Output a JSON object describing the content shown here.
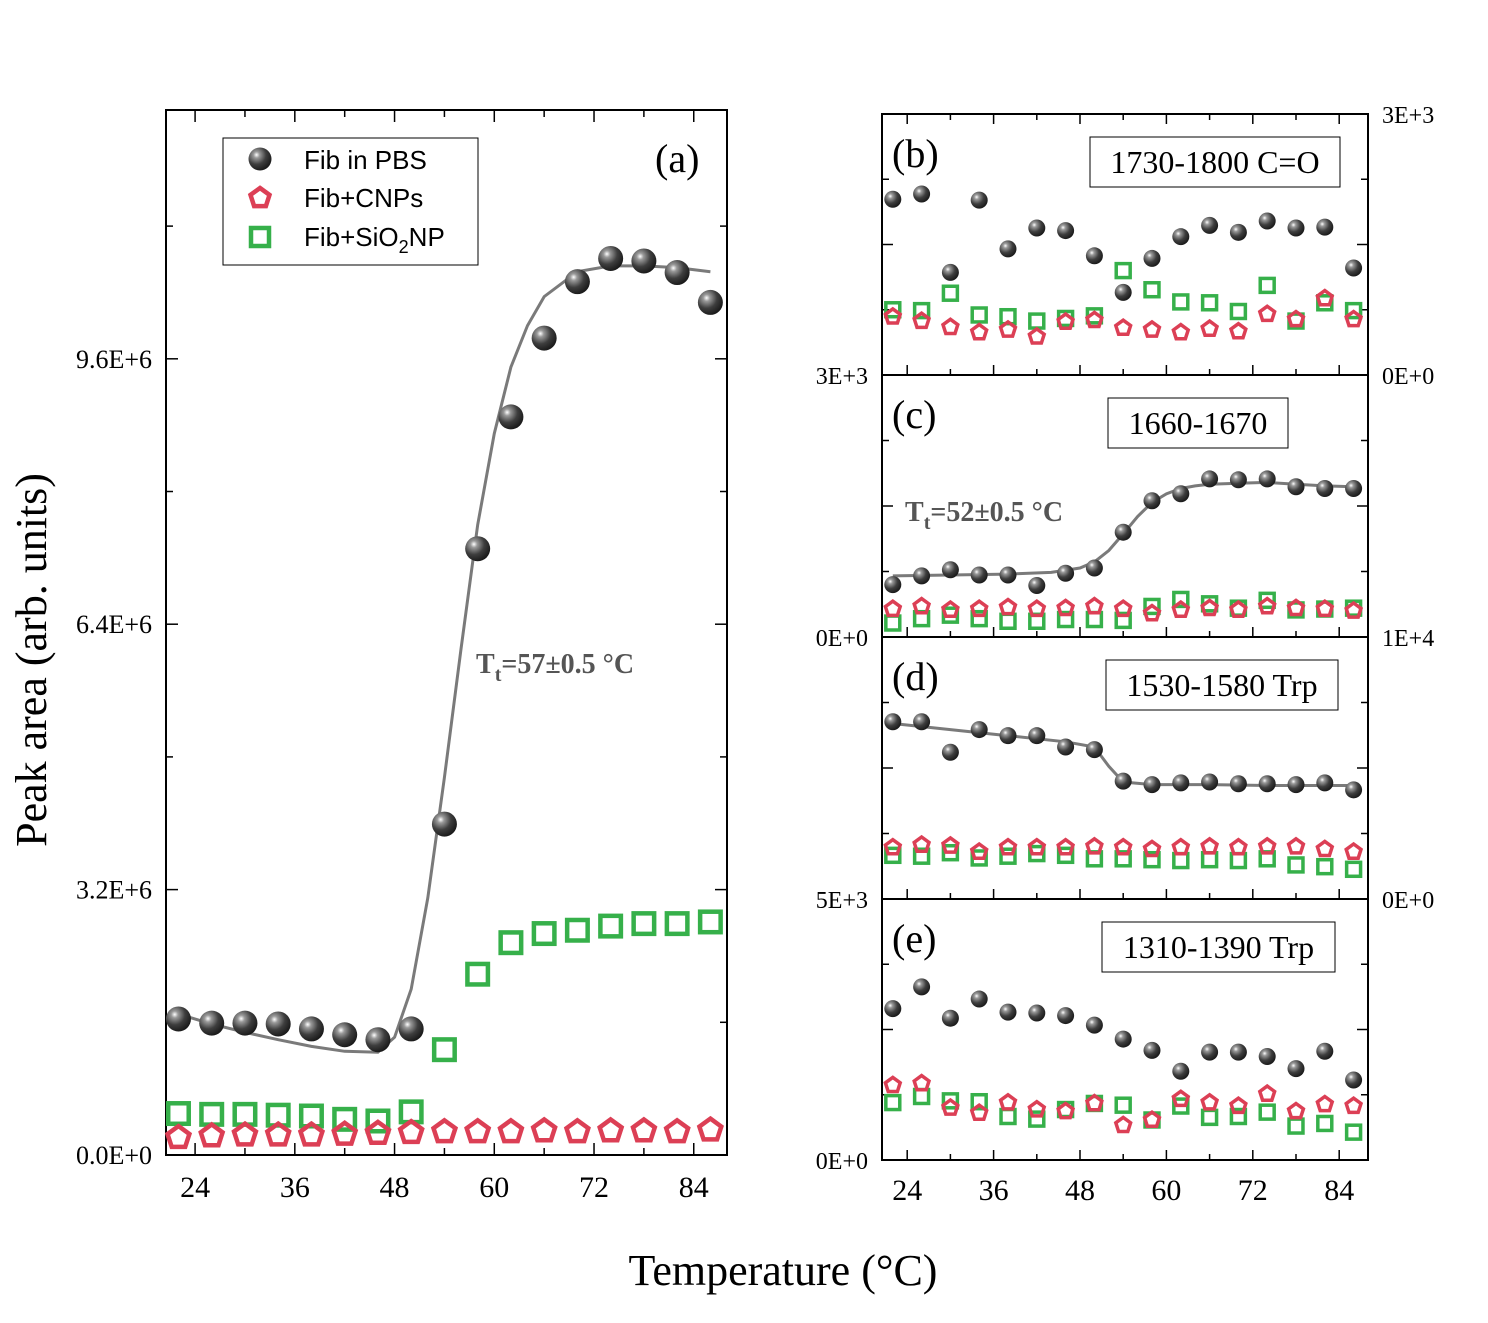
{
  "figure": {
    "ylabel": "Peak area (arb. units)",
    "xlabel": "Temperature (°C)"
  },
  "legend": {
    "items": [
      {
        "name": "Fib in PBS",
        "marker": "sphere",
        "color": "#3a3a3a"
      },
      {
        "name": "Fib+CNPs",
        "marker": "pentagon",
        "color": "#dc3f55"
      },
      {
        "name": "Fib+SiO2NP",
        "marker": "square",
        "color": "#36b04a",
        "text_parts": [
          "Fib+SiO",
          "2",
          "NP"
        ]
      }
    ]
  },
  "chart_data": [
    {
      "panel": "(a)",
      "type": "scatter",
      "title": "",
      "fit_label": {
        "prefix": "T",
        "sub": "t",
        "rest": "=57±0.5 °C"
      },
      "xlim": [
        20.5,
        88
      ],
      "ylim": [
        0,
        12600000
      ],
      "xticks": [
        24,
        36,
        48,
        60,
        72,
        84
      ],
      "xtick_labels": [
        "24",
        "36",
        "48",
        "60",
        "72",
        "84"
      ],
      "yticks": [
        0,
        3200000,
        6400000,
        9600000
      ],
      "ytick_labels": [
        "0.0E+0",
        "3.2E+6",
        "6.4E+6",
        "9.6E+6"
      ],
      "x": [
        22,
        26,
        30,
        34,
        38,
        42,
        46,
        50,
        54,
        58,
        62,
        66,
        70,
        74,
        78,
        82,
        86
      ],
      "series": [
        {
          "name": "Fib in PBS",
          "marker": "sphere",
          "values": [
            1640000,
            1590000,
            1590000,
            1580000,
            1520000,
            1450000,
            1390000,
            1520000,
            3990000,
            7310000,
            8900000,
            9850000,
            10530000,
            10810000,
            10780000,
            10640000,
            10280000
          ]
        },
        {
          "name": "Fib+CNPs",
          "marker": "pentagon",
          "values": [
            210000,
            230000,
            240000,
            240000,
            240000,
            250000,
            260000,
            270000,
            280000,
            280000,
            280000,
            290000,
            280000,
            290000,
            290000,
            280000,
            300000
          ]
        },
        {
          "name": "Fib+SiO2NP",
          "marker": "square",
          "values": [
            500000,
            490000,
            490000,
            480000,
            470000,
            430000,
            410000,
            520000,
            1270000,
            2180000,
            2560000,
            2670000,
            2710000,
            2760000,
            2790000,
            2790000,
            2810000
          ]
        }
      ],
      "fit": {
        "x": [
          22,
          26,
          30,
          34,
          38,
          42,
          46,
          48,
          50,
          52,
          54,
          56,
          58,
          60,
          62,
          64,
          66,
          70,
          74,
          78,
          82,
          86
        ],
        "y": [
          1700000,
          1580000,
          1480000,
          1390000,
          1310000,
          1250000,
          1240000,
          1420000,
          2000000,
          3100000,
          4550000,
          6100000,
          7600000,
          8700000,
          9500000,
          10000000,
          10350000,
          10650000,
          10720000,
          10720000,
          10700000,
          10650000
        ]
      }
    },
    {
      "panel": "(b)",
      "type": "scatter",
      "title": "1730-1800 C=O",
      "xlim": [
        20.5,
        88
      ],
      "ylim": [
        0,
        3000
      ],
      "left_ticks": [
        "3E+3"
      ],
      "right_ticks": [
        "3E+3",
        "0E+0"
      ],
      "x": [
        22,
        26,
        30,
        34,
        38,
        42,
        46,
        50,
        54,
        58,
        62,
        66,
        70,
        74,
        78,
        82,
        86
      ],
      "series": [
        {
          "name": "Fib in PBS",
          "marker": "sphere",
          "values": [
            2020,
            2080,
            1180,
            2010,
            1450,
            1690,
            1660,
            1370,
            950,
            1340,
            1590,
            1720,
            1640,
            1770,
            1690,
            1700,
            1230
          ]
        },
        {
          "name": "Fib+CNPs",
          "marker": "pentagon",
          "values": [
            670,
            620,
            550,
            490,
            520,
            440,
            610,
            630,
            540,
            520,
            490,
            530,
            500,
            700,
            640,
            880,
            640
          ]
        },
        {
          "name": "Fib+SiO2NP",
          "marker": "square",
          "values": [
            750,
            740,
            940,
            690,
            670,
            620,
            650,
            680,
            1200,
            980,
            840,
            830,
            730,
            1030,
            620,
            830,
            740
          ]
        }
      ]
    },
    {
      "panel": "(c)",
      "type": "scatter",
      "title": "1660-1670",
      "fit_label": {
        "prefix": "T",
        "sub": "t",
        "rest": "=52±0.5 °C"
      },
      "xlim": [
        20.5,
        88
      ],
      "ylim": [
        0,
        3000
      ],
      "left_ticks": [
        "0E+0"
      ],
      "right_ticks": [
        "1E+4"
      ],
      "x": [
        22,
        26,
        30,
        34,
        38,
        42,
        46,
        50,
        54,
        58,
        62,
        66,
        70,
        74,
        78,
        82,
        86
      ],
      "series": [
        {
          "name": "Fib in PBS",
          "marker": "sphere",
          "values": [
            600,
            700,
            770,
            710,
            710,
            590,
            730,
            790,
            1200,
            1560,
            1640,
            1810,
            1800,
            1810,
            1720,
            1700,
            1700
          ]
        },
        {
          "name": "Fib+CNPs",
          "marker": "pentagon",
          "values": [
            320,
            350,
            310,
            320,
            340,
            320,
            330,
            350,
            320,
            270,
            310,
            330,
            310,
            350,
            330,
            320,
            300
          ]
        },
        {
          "name": "Fib+SiO2NP",
          "marker": "square",
          "values": [
            160,
            210,
            250,
            210,
            180,
            180,
            200,
            200,
            190,
            350,
            430,
            380,
            330,
            420,
            310,
            320,
            330
          ]
        }
      ],
      "fit": {
        "x": [
          22,
          30,
          38,
          44,
          48,
          50,
          52,
          54,
          56,
          58,
          60,
          62,
          64,
          66,
          70,
          74,
          78,
          82,
          86
        ],
        "y": [
          700,
          710,
          720,
          740,
          790,
          860,
          990,
          1180,
          1380,
          1540,
          1640,
          1700,
          1730,
          1750,
          1760,
          1770,
          1750,
          1730,
          1720
        ]
      }
    },
    {
      "panel": "(d)",
      "type": "scatter",
      "title": "1530-1580 Trp",
      "xlim": [
        20.5,
        88
      ],
      "ylim": [
        0,
        3000
      ],
      "left_ticks": [
        "5E+3"
      ],
      "right_ticks": [
        "1E+4",
        "0E+0"
      ],
      "x": [
        22,
        26,
        30,
        34,
        38,
        42,
        46,
        50,
        54,
        58,
        62,
        66,
        70,
        74,
        78,
        82,
        86
      ],
      "series": [
        {
          "name": "Fib in PBS",
          "marker": "sphere",
          "values": [
            2030,
            2030,
            1680,
            1940,
            1870,
            1870,
            1740,
            1710,
            1350,
            1310,
            1330,
            1340,
            1320,
            1320,
            1310,
            1330,
            1250
          ]
        },
        {
          "name": "Fib+CNPs",
          "marker": "pentagon",
          "values": [
            590,
            620,
            610,
            540,
            590,
            590,
            590,
            600,
            590,
            570,
            590,
            600,
            590,
            600,
            600,
            570,
            540
          ]
        },
        {
          "name": "Fib+SiO2NP",
          "marker": "square",
          "values": [
            500,
            490,
            530,
            470,
            490,
            520,
            500,
            460,
            460,
            450,
            440,
            450,
            440,
            460,
            390,
            370,
            340
          ]
        }
      ],
      "fit": {
        "x": [
          22,
          30,
          38,
          46,
          50,
          52,
          54,
          58,
          66,
          74,
          82,
          86
        ],
        "y": [
          2010,
          1940,
          1870,
          1800,
          1740,
          1520,
          1340,
          1310,
          1310,
          1300,
          1300,
          1300
        ]
      }
    },
    {
      "panel": "(e)",
      "type": "scatter",
      "title": "1310-1390 Trp",
      "xlim": [
        20.5,
        88
      ],
      "ylim": [
        0,
        3000
      ],
      "left_ticks": [
        "0E+0"
      ],
      "right_ticks": [],
      "x": [
        22,
        26,
        30,
        34,
        38,
        42,
        46,
        50,
        54,
        58,
        62,
        66,
        70,
        74,
        78,
        82,
        86
      ],
      "series": [
        {
          "name": "Fib in PBS",
          "marker": "sphere",
          "values": [
            1740,
            1990,
            1630,
            1850,
            1700,
            1690,
            1660,
            1550,
            1390,
            1260,
            1020,
            1240,
            1240,
            1190,
            1050,
            1250,
            920
          ]
        },
        {
          "name": "Fib+CNPs",
          "marker": "pentagon",
          "values": [
            860,
            880,
            600,
            540,
            660,
            580,
            560,
            650,
            400,
            460,
            700,
            660,
            620,
            760,
            560,
            640,
            620
          ]
        },
        {
          "name": "Fib+SiO2NP",
          "marker": "square",
          "values": [
            660,
            730,
            680,
            670,
            500,
            470,
            580,
            650,
            630,
            460,
            620,
            490,
            500,
            550,
            390,
            420,
            320
          ]
        }
      ]
    }
  ],
  "small_xticks": [
    24,
    36,
    48,
    60,
    72,
    84
  ],
  "small_xtick_labels": [
    "24",
    "36",
    "48",
    "60",
    "72",
    "84"
  ]
}
